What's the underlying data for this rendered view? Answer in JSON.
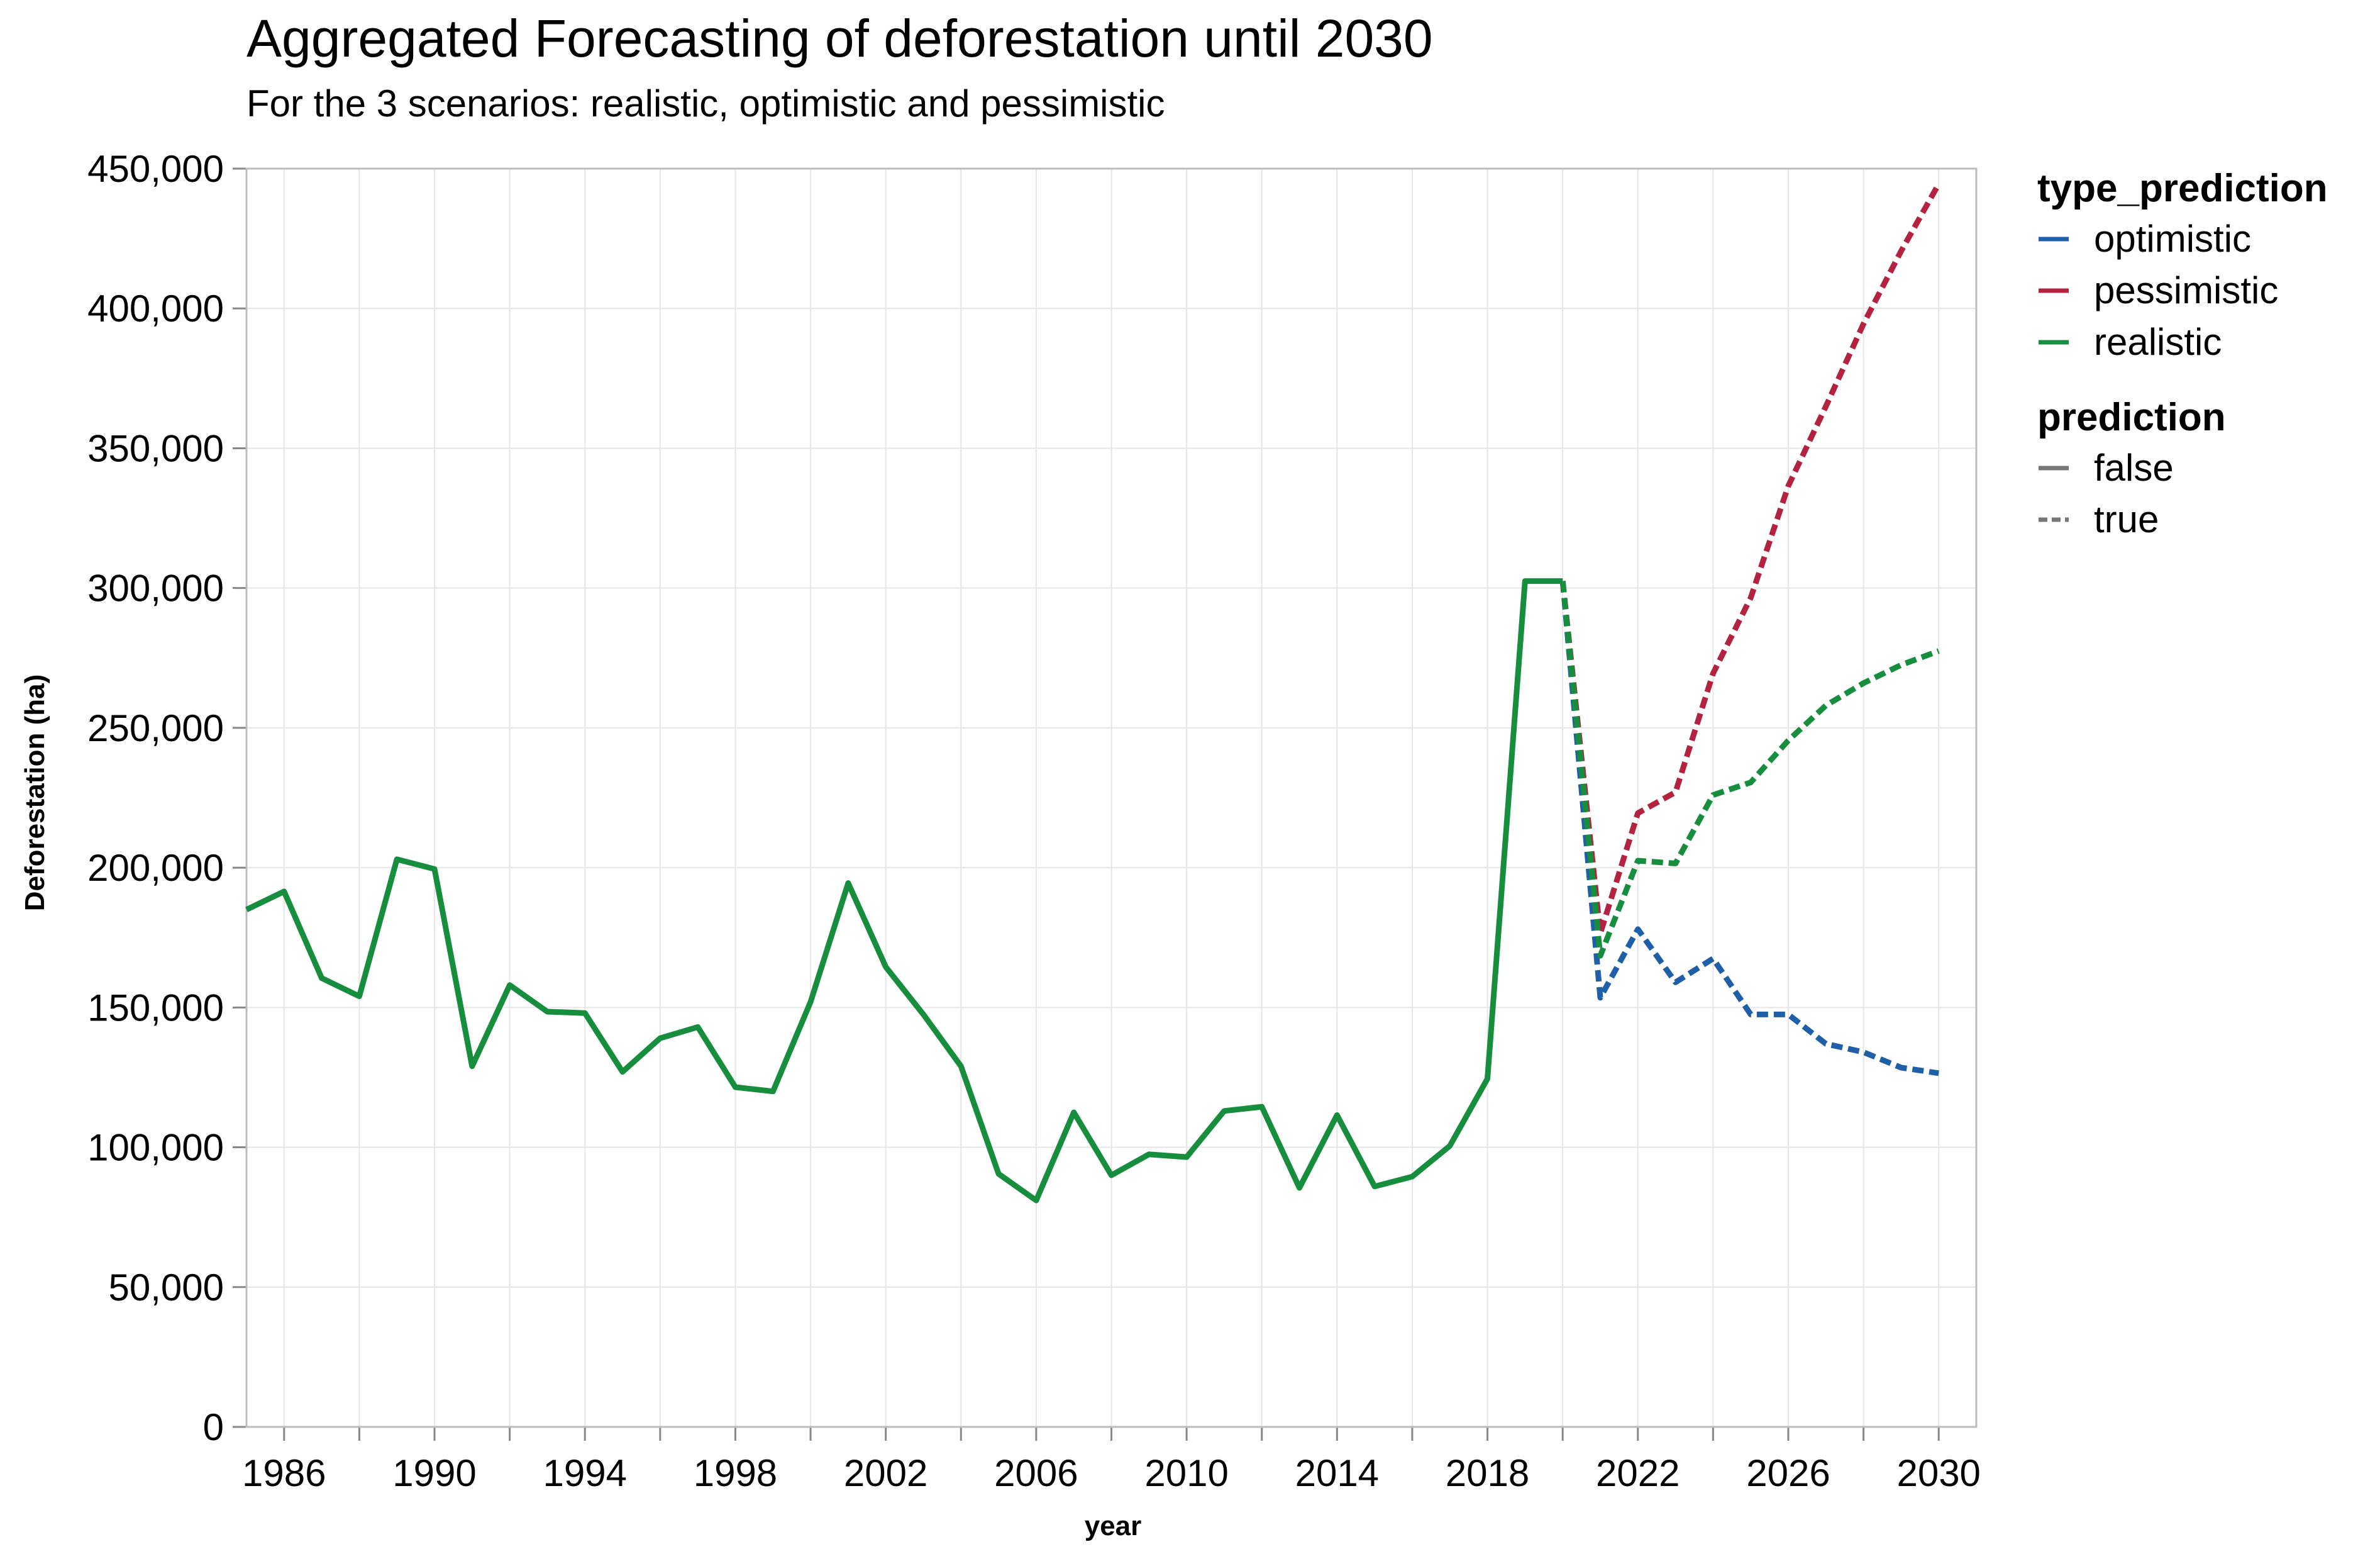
{
  "chart_data": {
    "type": "line",
    "title": "Aggregated Forecasting of deforestation until 2030",
    "subtitle": "For the 3 scenarios: realistic, optimistic and pessimistic",
    "xlabel": "year",
    "ylabel": "Deforestation (ha)",
    "xlim": [
      1985,
      2031
    ],
    "ylim": [
      0,
      450000
    ],
    "x_ticks": [
      "1986",
      "1990",
      "1994",
      "1998",
      "2002",
      "2006",
      "2010",
      "2014",
      "2018",
      "2022",
      "2026",
      "2030"
    ],
    "y_ticks": [
      "0",
      "50,000",
      "100,000",
      "150,000",
      "200,000",
      "250,000",
      "300,000",
      "350,000",
      "400,000",
      "450,000"
    ],
    "grid": true,
    "legend_placement": "right",
    "legends": [
      {
        "title": "type_prediction",
        "entries": [
          {
            "label": "optimistic",
            "color": "#1f5fa8"
          },
          {
            "label": "pessimistic",
            "color": "#b3233f"
          },
          {
            "label": "realistic",
            "color": "#178d3e"
          }
        ]
      },
      {
        "title": "prediction",
        "entries": [
          {
            "label": "false",
            "dash": "solid",
            "color": "#777777"
          },
          {
            "label": "true",
            "dash": "dashed",
            "color": "#777777"
          }
        ]
      }
    ],
    "series": [
      {
        "name": "realistic",
        "prediction": "false",
        "color": "#178d3e",
        "dash": "solid",
        "x": [
          1985,
          1986,
          1987,
          1988,
          1989,
          1990,
          1991,
          1992,
          1993,
          1994,
          1995,
          1996,
          1997,
          1998,
          1999,
          2000,
          2001,
          2002,
          2003,
          2004,
          2005,
          2006,
          2007,
          2008,
          2009,
          2010,
          2011,
          2012,
          2013,
          2014,
          2015,
          2016,
          2017,
          2018,
          2019,
          2020
        ],
        "y": [
          185000,
          191500,
          160500,
          154000,
          203000,
          199500,
          129000,
          158000,
          148500,
          148000,
          127000,
          139000,
          143000,
          121500,
          120000,
          152000,
          194500,
          164500,
          147500,
          129000,
          90500,
          81000,
          112500,
          90000,
          97500,
          96500,
          113000,
          114500,
          85500,
          111500,
          86000,
          89500,
          100500,
          124500,
          302500,
          302500
        ]
      },
      {
        "name": "optimistic",
        "prediction": "true",
        "color": "#1f5fa8",
        "dash": "dashed",
        "x": [
          2020,
          2021,
          2022,
          2023,
          2024,
          2025,
          2026,
          2027,
          2028,
          2029,
          2030
        ],
        "y": [
          302500,
          153500,
          178000,
          159000,
          167500,
          147500,
          147500,
          137000,
          134000,
          128500,
          126500
        ]
      },
      {
        "name": "pessimistic",
        "prediction": "true",
        "color": "#b3233f",
        "dash": "dashed",
        "x": [
          2020,
          2021,
          2022,
          2023,
          2024,
          2025,
          2026,
          2027,
          2028,
          2029,
          2030
        ],
        "y": [
          302500,
          176500,
          219500,
          227000,
          269500,
          296500,
          336500,
          365000,
          394500,
          420500,
          444500
        ]
      },
      {
        "name": "realistic",
        "prediction": "true",
        "color": "#178d3e",
        "dash": "dashed",
        "x": [
          2020,
          2021,
          2022,
          2023,
          2024,
          2025,
          2026,
          2027,
          2028,
          2029,
          2030
        ],
        "y": [
          302500,
          168500,
          202500,
          201500,
          226000,
          230500,
          245500,
          258000,
          266000,
          272500,
          277500
        ]
      }
    ]
  }
}
